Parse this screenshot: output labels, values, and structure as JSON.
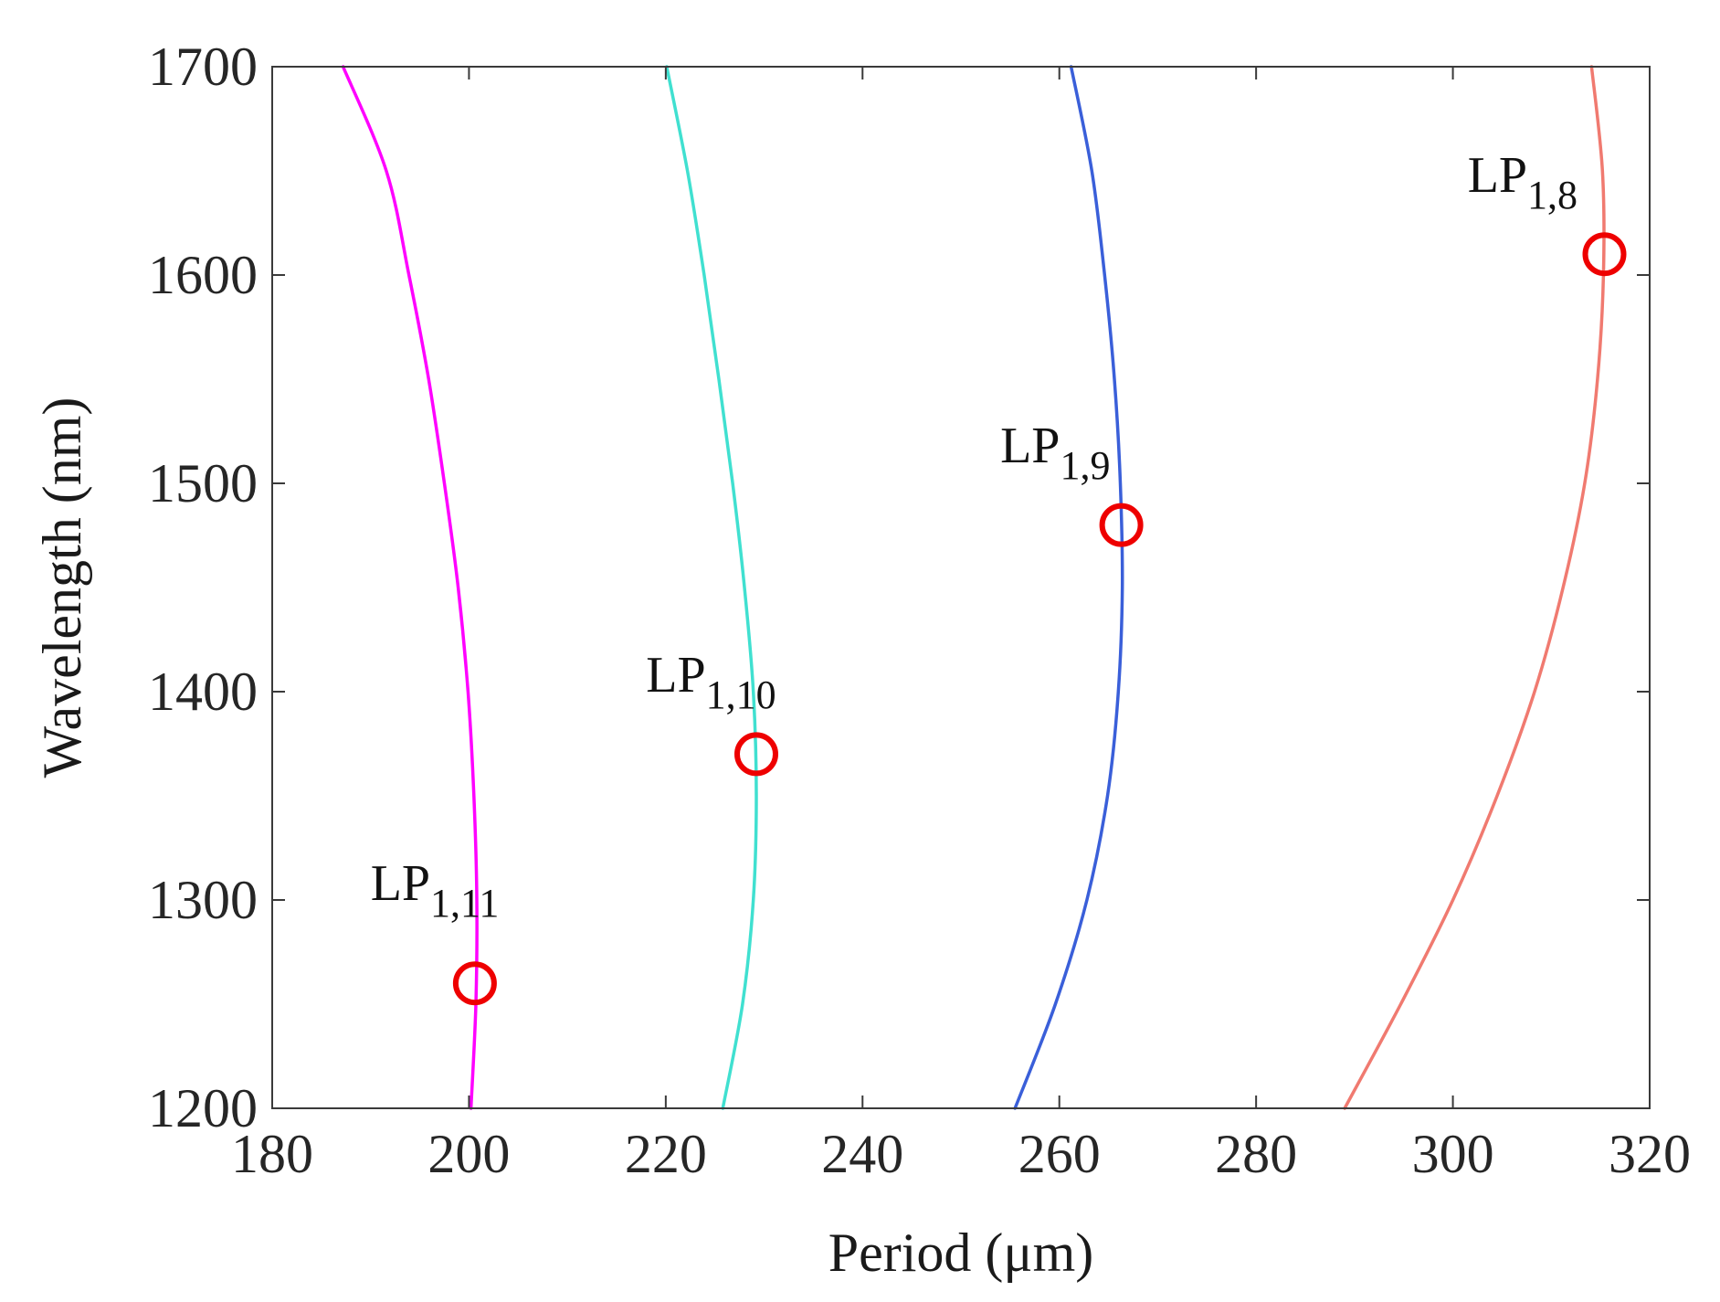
{
  "chart_data": {
    "type": "line",
    "title": "",
    "xlabel": "Period (μm)",
    "ylabel": "Wavelength (nm)",
    "xlim": [
      180,
      320
    ],
    "ylim": [
      1200,
      1700
    ],
    "xticks": [
      180,
      200,
      220,
      240,
      260,
      280,
      300,
      320
    ],
    "yticks": [
      1200,
      1300,
      1400,
      1500,
      1600,
      1700
    ],
    "grid": false,
    "legend": "none",
    "series": [
      {
        "name": "LP1,11",
        "color": "#ff00ff",
        "points": [
          [
            200.2,
            1200
          ],
          [
            200.7,
            1250
          ],
          [
            200.8,
            1300
          ],
          [
            200.5,
            1350
          ],
          [
            199.9,
            1400
          ],
          [
            198.9,
            1450
          ],
          [
            197.5,
            1500
          ],
          [
            195.9,
            1550
          ],
          [
            193.9,
            1600
          ],
          [
            191.6,
            1650
          ],
          [
            187.2,
            1700
          ]
        ]
      },
      {
        "name": "LP1,10",
        "color": "#40e0d0",
        "points": [
          [
            225.8,
            1200
          ],
          [
            227.8,
            1250
          ],
          [
            228.9,
            1300
          ],
          [
            229.2,
            1350
          ],
          [
            228.9,
            1400
          ],
          [
            228.0,
            1450
          ],
          [
            226.8,
            1500
          ],
          [
            225.4,
            1550
          ],
          [
            223.9,
            1600
          ],
          [
            222.2,
            1650
          ],
          [
            220.1,
            1700
          ]
        ]
      },
      {
        "name": "LP1,9",
        "color": "#3a5fd9",
        "points": [
          [
            255.5,
            1200
          ],
          [
            259.6,
            1250
          ],
          [
            262.8,
            1300
          ],
          [
            264.9,
            1350
          ],
          [
            266.0,
            1400
          ],
          [
            266.4,
            1450
          ],
          [
            266.2,
            1500
          ],
          [
            265.6,
            1550
          ],
          [
            264.6,
            1600
          ],
          [
            263.3,
            1650
          ],
          [
            261.2,
            1700
          ]
        ]
      },
      {
        "name": "LP1,8",
        "color": "#f07a70",
        "points": [
          [
            289.0,
            1200
          ],
          [
            294.7,
            1250
          ],
          [
            300.0,
            1300
          ],
          [
            304.5,
            1350
          ],
          [
            308.3,
            1400
          ],
          [
            311.2,
            1450
          ],
          [
            313.4,
            1500
          ],
          [
            314.7,
            1550
          ],
          [
            315.3,
            1600
          ],
          [
            315.2,
            1650
          ],
          [
            314.1,
            1700
          ]
        ]
      }
    ],
    "markers": [
      {
        "label": "LP1,11",
        "x": 200.6,
        "y": 1260,
        "color": "#ee0000"
      },
      {
        "label": "LP1,10",
        "x": 229.2,
        "y": 1370,
        "color": "#ee0000"
      },
      {
        "label": "LP1,9",
        "x": 266.3,
        "y": 1480,
        "color": "#ee0000"
      },
      {
        "label": "LP1,8",
        "x": 315.4,
        "y": 1610,
        "color": "#ee0000"
      }
    ],
    "annotations": [
      {
        "base": "LP",
        "sub": "1,11",
        "x": 190.0,
        "y": 1300
      },
      {
        "base": "LP",
        "sub": "1,10",
        "x": 218.0,
        "y": 1400
      },
      {
        "base": "LP",
        "sub": "1,9",
        "x": 254.0,
        "y": 1510
      },
      {
        "base": "LP",
        "sub": "1,8",
        "x": 301.5,
        "y": 1640
      }
    ]
  }
}
